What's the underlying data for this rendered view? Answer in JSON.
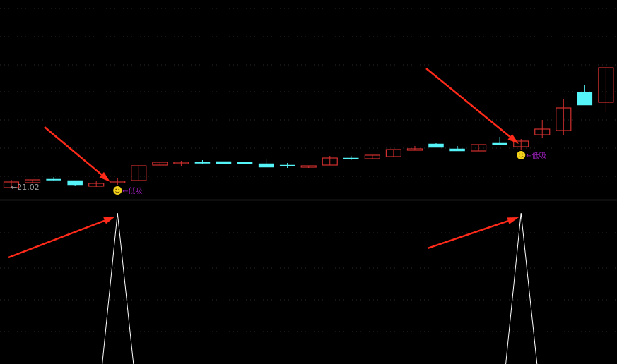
{
  "chart_data": [
    {
      "type": "candlestick",
      "panel": "price",
      "colors": {
        "up": "#d23030",
        "down": "#54f4f8",
        "background": "#000000"
      },
      "last_low_label": "21.02",
      "candles": [
        {
          "o": 21.02,
          "h": 21.24,
          "l": 21.02,
          "c": 21.18
        },
        {
          "o": 21.16,
          "h": 21.24,
          "l": 21.16,
          "c": 21.24
        },
        {
          "o": 21.26,
          "h": 21.32,
          "l": 21.2,
          "c": 21.24
        },
        {
          "o": 21.22,
          "h": 21.22,
          "l": 21.08,
          "c": 21.1
        },
        {
          "o": 21.06,
          "h": 21.22,
          "l": 21.04,
          "c": 21.14
        },
        {
          "o": 21.16,
          "h": 21.3,
          "l": 21.1,
          "c": 21.2
        },
        {
          "o": 21.22,
          "h": 21.64,
          "l": 21.22,
          "c": 21.64
        },
        {
          "o": 21.66,
          "h": 21.74,
          "l": 21.66,
          "c": 21.74
        },
        {
          "o": 21.7,
          "h": 21.78,
          "l": 21.62,
          "c": 21.74
        },
        {
          "o": 21.74,
          "h": 21.8,
          "l": 21.68,
          "c": 21.72
        },
        {
          "o": 21.76,
          "h": 21.76,
          "l": 21.7,
          "c": 21.7
        },
        {
          "o": 21.74,
          "h": 21.74,
          "l": 21.7,
          "c": 21.7
        },
        {
          "o": 21.7,
          "h": 21.82,
          "l": 21.6,
          "c": 21.6
        },
        {
          "o": 21.66,
          "h": 21.72,
          "l": 21.58,
          "c": 21.64
        },
        {
          "o": 21.6,
          "h": 21.64,
          "l": 21.58,
          "c": 21.64
        },
        {
          "o": 21.66,
          "h": 21.92,
          "l": 21.66,
          "c": 21.86
        },
        {
          "o": 21.86,
          "h": 21.92,
          "l": 21.8,
          "c": 21.84
        },
        {
          "o": 21.84,
          "h": 21.94,
          "l": 21.84,
          "c": 21.94
        },
        {
          "o": 21.9,
          "h": 22.1,
          "l": 21.9,
          "c": 22.1
        },
        {
          "o": 22.08,
          "h": 22.2,
          "l": 22.08,
          "c": 22.12
        },
        {
          "o": 22.26,
          "h": 22.28,
          "l": 22.16,
          "c": 22.16
        },
        {
          "o": 22.12,
          "h": 22.2,
          "l": 22.06,
          "c": 22.06
        },
        {
          "o": 22.06,
          "h": 22.24,
          "l": 22.06,
          "c": 22.24
        },
        {
          "o": 22.28,
          "h": 22.46,
          "l": 22.24,
          "c": 22.24
        },
        {
          "o": 22.18,
          "h": 22.4,
          "l": 22.1,
          "c": 22.34
        },
        {
          "o": 22.52,
          "h": 22.94,
          "l": 22.42,
          "c": 22.68
        },
        {
          "o": 22.64,
          "h": 23.54,
          "l": 22.52,
          "c": 23.28
        },
        {
          "o": 23.72,
          "h": 23.94,
          "l": 23.36,
          "c": 23.36
        },
        {
          "o": 23.44,
          "h": 24.42,
          "l": 23.16,
          "c": 24.42
        }
      ],
      "signals": [
        {
          "candle_index": 5,
          "label": "低吸",
          "icon": "smiley-icon"
        },
        {
          "candle_index": 24,
          "label": "低吸",
          "icon": "smiley-icon"
        }
      ]
    },
    {
      "type": "line",
      "panel": "indicator",
      "color": "#ffffff",
      "values": [
        0,
        0,
        0,
        0,
        0,
        1,
        0,
        0,
        0,
        0,
        0,
        0,
        0,
        0,
        0,
        0,
        0,
        0,
        0,
        0,
        0,
        0,
        0,
        0,
        1,
        0,
        0,
        0,
        0
      ]
    }
  ],
  "annotations": {
    "arrow_color": "#ff2a1a",
    "arrows": [
      "price-signal-1",
      "price-signal-2",
      "indicator-peak-1",
      "indicator-peak-2"
    ]
  }
}
